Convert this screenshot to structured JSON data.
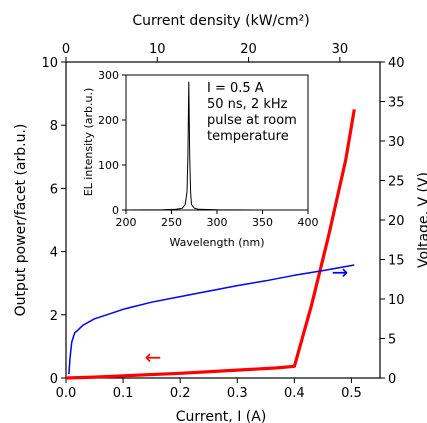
{
  "chart_data": [
    {
      "type": "line",
      "role": "main",
      "xlabel": "Current, I (A)",
      "ylabel": "Output power/facet (arb.u.)",
      "y2label": "Voltage, V (V)",
      "top_xlabel": "Current density (kW/cm²)",
      "xlim": [
        0,
        0.55
      ],
      "ylim": [
        0,
        10
      ],
      "y2lim": [
        0,
        40
      ],
      "top_xlim": [
        0,
        34.4
      ],
      "x_ticks": [
        "0.0",
        "0.1",
        "0.2",
        "0.3",
        "0.4",
        "0.5"
      ],
      "y_ticks": [
        "0",
        "2",
        "4",
        "6",
        "8",
        "10"
      ],
      "y2_ticks": [
        "0",
        "5",
        "10",
        "15",
        "20",
        "25",
        "30",
        "35",
        "40"
      ],
      "top_ticks": [
        "0",
        "10",
        "20",
        "30"
      ],
      "series": [
        {
          "color": "#ff0000",
          "axis": "left",
          "x": [
            0.0,
            0.05,
            0.1,
            0.2,
            0.3,
            0.37,
            0.4,
            0.43,
            0.46,
            0.49,
            0.505
          ],
          "y": [
            0.0,
            0.03,
            0.07,
            0.15,
            0.25,
            0.32,
            0.37,
            2.3,
            4.5,
            6.9,
            8.5
          ]
        },
        {
          "color": "#0000ff",
          "axis": "right",
          "x": [
            0.005,
            0.007,
            0.01,
            0.015,
            0.02,
            0.03,
            0.05,
            0.08,
            0.1,
            0.15,
            0.2,
            0.25,
            0.3,
            0.35,
            0.4,
            0.45,
            0.505
          ],
          "y": [
            0.5,
            2.5,
            4.5,
            5.7,
            6.0,
            6.7,
            7.5,
            8.2,
            8.7,
            9.6,
            10.3,
            11.0,
            11.7,
            12.3,
            13.0,
            13.6,
            14.3
          ]
        }
      ]
    },
    {
      "type": "line",
      "role": "inset",
      "xlabel": "Wavelength (nm)",
      "ylabel": "EL intensity (arb.u.)",
      "xlim": [
        200,
        400
      ],
      "ylim": [
        0,
        300
      ],
      "x_ticks": [
        "200",
        "250",
        "300",
        "350",
        "400"
      ],
      "y_ticks": [
        "0",
        "100",
        "200",
        "300"
      ],
      "annotation": [
        "I = 0.5 A",
        "50 ns, 2 kHz",
        "pulse at room",
        "temperature"
      ],
      "series": [
        {
          "color": "#000000",
          "x": [
            200,
            240,
            255,
            262,
            265,
            267,
            268,
            269,
            270,
            271,
            272,
            275,
            280,
            300,
            350,
            400
          ],
          "y": [
            0,
            0.5,
            1.5,
            4,
            12,
            40,
            120,
            285,
            120,
            40,
            12,
            4,
            1.5,
            0.5,
            0,
            0
          ]
        }
      ]
    }
  ],
  "arrows": [
    {
      "symbol": "←",
      "color": "#ff0000",
      "meaning": "left axis"
    },
    {
      "symbol": "→",
      "color": "#0000ff",
      "meaning": "right axis"
    }
  ]
}
